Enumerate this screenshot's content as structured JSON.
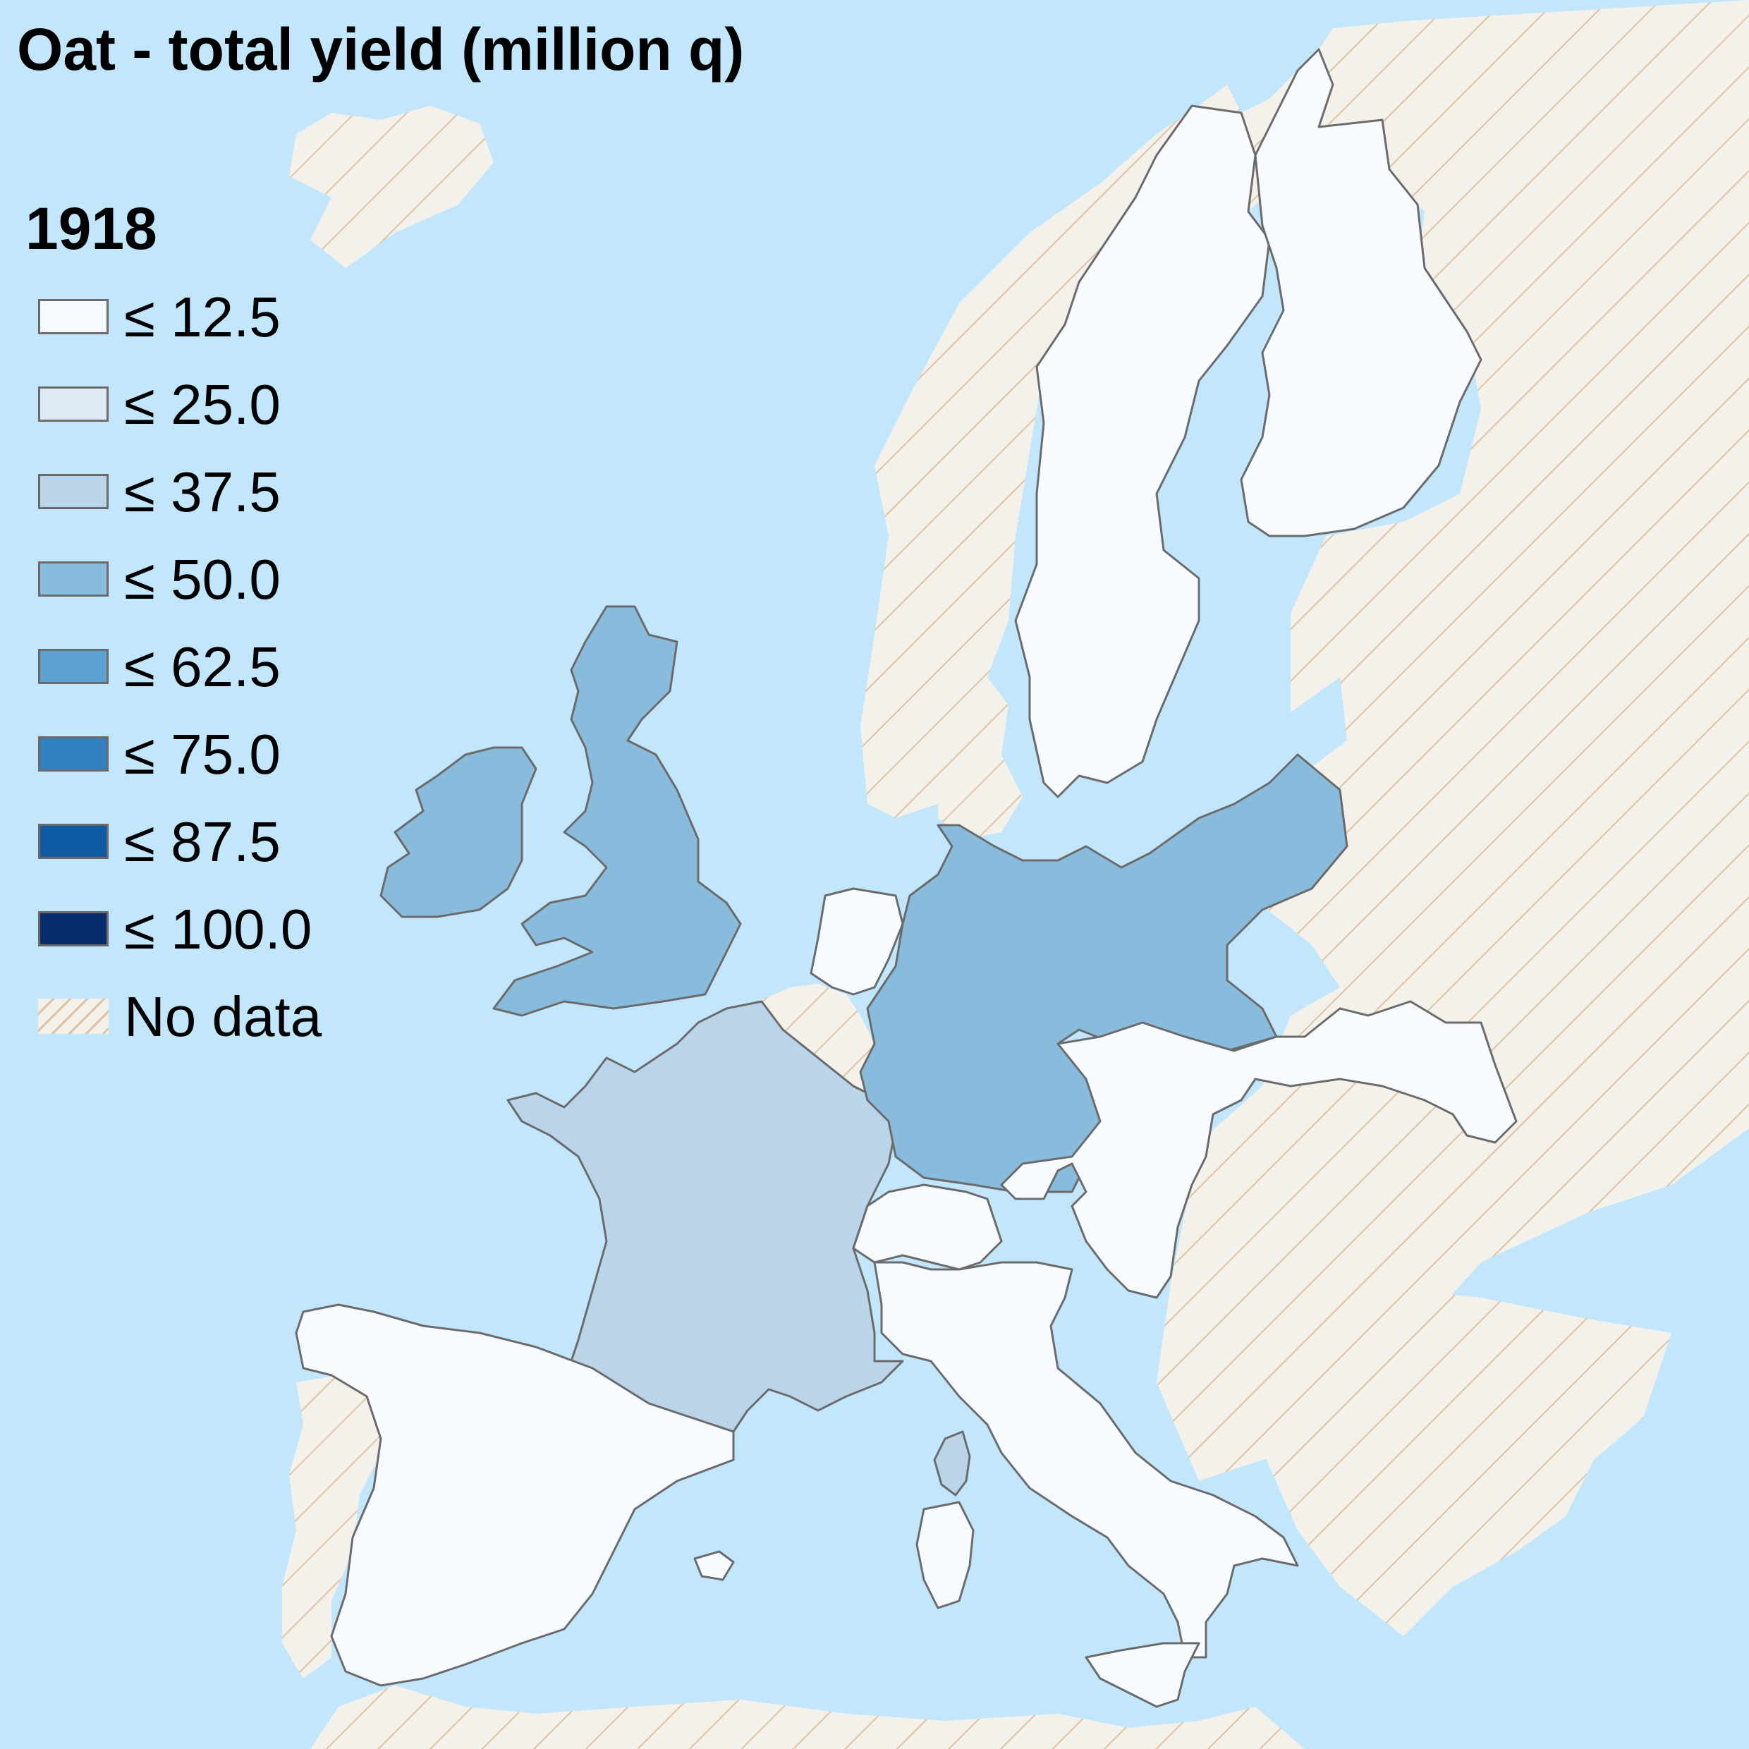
{
  "title": "Oat - total yield (million q)",
  "year": "1918",
  "colors": {
    "sea": "#c2e6fc",
    "no_data_base": "#f4f1ea",
    "no_data_stripe": "#dcc3a6",
    "border": "#6b6b6b"
  },
  "legend": [
    {
      "label": "≤ 12.5",
      "color": "#f7fbff"
    },
    {
      "label": "≤ 25.0",
      "color": "#dde9f5"
    },
    {
      "label": "≤ 37.5",
      "color": "#bad5ea"
    },
    {
      "label": "≤ 50.0",
      "color": "#89bcdc"
    },
    {
      "label": "≤ 62.5",
      "color": "#5ba2d1"
    },
    {
      "label": "≤ 75.0",
      "color": "#3181bf"
    },
    {
      "label": "≤ 87.5",
      "color": "#0e5aa3"
    },
    {
      "label": "≤ 100.0",
      "color": "#072e6b"
    },
    {
      "label": "No data",
      "color": "hatch"
    }
  ],
  "map_data": {
    "regions": [
      {
        "name": "sweden",
        "bin": "≤ 12.5"
      },
      {
        "name": "finland",
        "bin": "≤ 12.5"
      },
      {
        "name": "united-kingdom",
        "bin": "≤ 50.0"
      },
      {
        "name": "ireland",
        "bin": "≤ 50.0"
      },
      {
        "name": "netherlands",
        "bin": "≤ 12.5"
      },
      {
        "name": "belgium",
        "bin": "No data"
      },
      {
        "name": "france",
        "bin": "≤ 37.5"
      },
      {
        "name": "corsica",
        "bin": "≤ 37.5"
      },
      {
        "name": "germany",
        "bin": "≤ 50.0"
      },
      {
        "name": "austria-hungary",
        "bin": "≤ 12.5"
      },
      {
        "name": "switzerland",
        "bin": "≤ 12.5"
      },
      {
        "name": "italy",
        "bin": "≤ 12.5"
      },
      {
        "name": "sardinia",
        "bin": "≤ 12.5"
      },
      {
        "name": "sicily",
        "bin": "≤ 12.5"
      },
      {
        "name": "spain",
        "bin": "≤ 12.5"
      },
      {
        "name": "balearic-islands",
        "bin": "≤ 12.5"
      },
      {
        "name": "portugal",
        "bin": "No data"
      },
      {
        "name": "norway",
        "bin": "No data"
      },
      {
        "name": "denmark",
        "bin": "No data"
      },
      {
        "name": "russia-and-eastern-europe",
        "bin": "No data"
      },
      {
        "name": "balkans",
        "bin": "No data"
      },
      {
        "name": "iceland",
        "bin": "No data"
      },
      {
        "name": "north-africa",
        "bin": "No data"
      }
    ]
  }
}
